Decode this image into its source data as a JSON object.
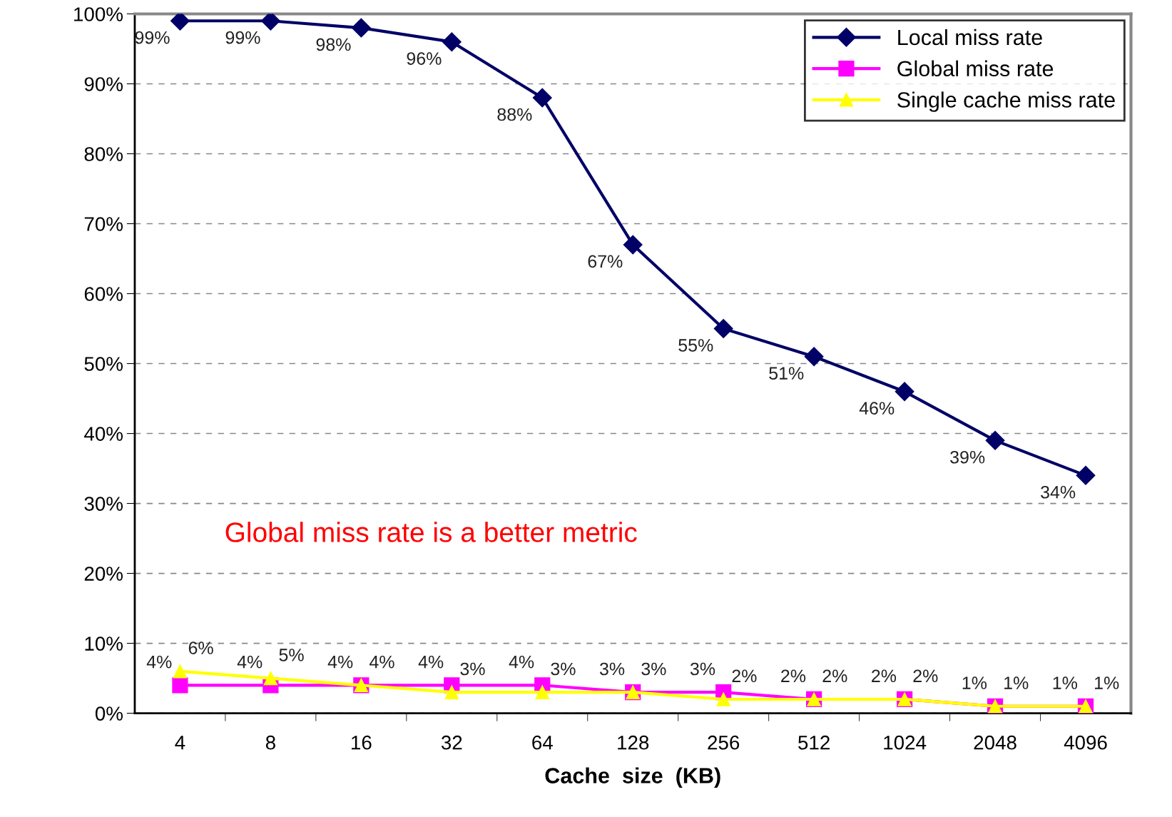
{
  "chart_data": {
    "type": "line",
    "xlabel": "Cache  size  (KB)",
    "categories": [
      "4",
      "8",
      "16",
      "32",
      "64",
      "128",
      "256",
      "512",
      "1024",
      "2048",
      "4096"
    ],
    "series": [
      {
        "name": "Local miss rate",
        "color": "#000066",
        "marker": "diamond",
        "values": [
          99,
          99,
          98,
          96,
          88,
          67,
          55,
          51,
          46,
          39,
          34
        ],
        "value_labels": [
          "99%",
          "99%",
          "98%",
          "96%",
          "88%",
          "67%",
          "55%",
          "51%",
          "46%",
          "39%",
          "34%"
        ]
      },
      {
        "name": "Global miss rate",
        "color": "#ff00ff",
        "marker": "square",
        "values": [
          4,
          4,
          4,
          4,
          4,
          3,
          3,
          2,
          2,
          1,
          1
        ],
        "value_labels": [
          "4%",
          "4%",
          "4%",
          "4%",
          "4%",
          "3%",
          "3%",
          "2%",
          "2%",
          "1%",
          "1%"
        ]
      },
      {
        "name": "Single cache miss rate",
        "color": "#ffff00",
        "marker": "triangle",
        "values": [
          6,
          5,
          4,
          3,
          3,
          3,
          2,
          2,
          2,
          1,
          1
        ],
        "value_labels": [
          "6%",
          "5%",
          "4%",
          "3%",
          "3%",
          "3%",
          "2%",
          "2%",
          "2%",
          "1%",
          "1%"
        ]
      }
    ],
    "ylim": [
      0,
      100
    ],
    "yticks": [
      {
        "value": 0,
        "label": "0%"
      },
      {
        "value": 10,
        "label": "10%"
      },
      {
        "value": 20,
        "label": "20%"
      },
      {
        "value": 30,
        "label": "30%"
      },
      {
        "value": 40,
        "label": "40%"
      },
      {
        "value": 50,
        "label": "50%"
      },
      {
        "value": 60,
        "label": "60%"
      },
      {
        "value": 70,
        "label": "70%"
      },
      {
        "value": 80,
        "label": "80%"
      },
      {
        "value": 90,
        "label": "90%"
      },
      {
        "value": 100,
        "label": "100%"
      }
    ],
    "grid": "y",
    "legend": "top right",
    "line_style": "solid",
    "annotations": [
      "Global miss rate is a better metric"
    ]
  }
}
